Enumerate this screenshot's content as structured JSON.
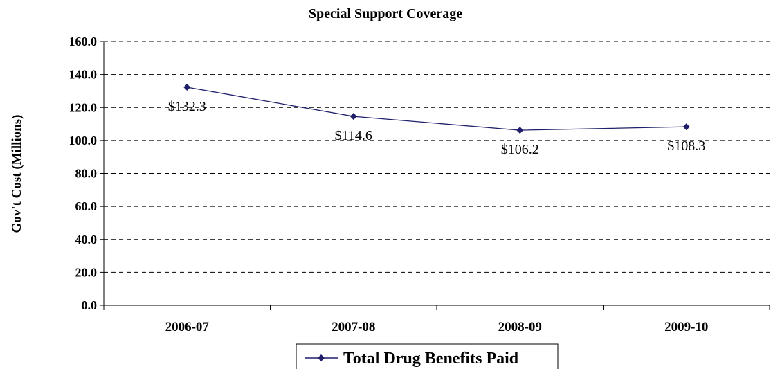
{
  "chart_data": {
    "type": "line",
    "title": "Special Support Coverage",
    "xlabel": "",
    "ylabel": "Gov't Cost (Millions)",
    "categories": [
      "2006-07",
      "2007-08",
      "2008-09",
      "2009-10"
    ],
    "series": [
      {
        "name": "Total Drug Benefits Paid",
        "values": [
          132.3,
          114.6,
          106.2,
          108.3
        ],
        "labels": [
          "$132.3",
          "$114.6",
          "$106.2",
          "$108.3"
        ],
        "color": "#1f1f6b"
      }
    ],
    "ylim": [
      0,
      160
    ],
    "yticks": [
      "0.0",
      "20.0",
      "40.0",
      "60.0",
      "80.0",
      "100.0",
      "120.0",
      "140.0",
      "160.0"
    ],
    "grid": true,
    "legend_position": "bottom"
  }
}
